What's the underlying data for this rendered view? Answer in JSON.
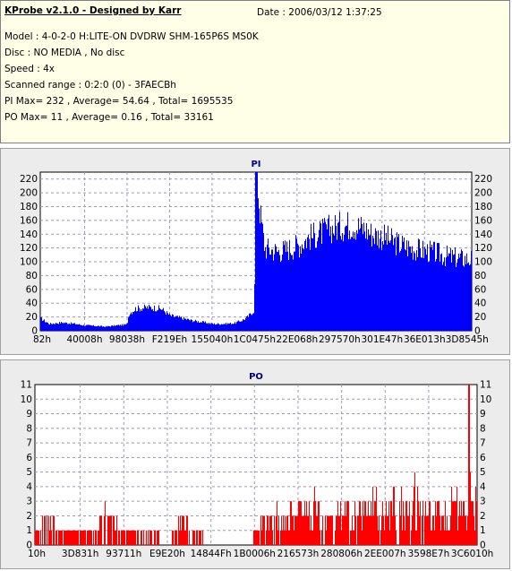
{
  "info": {
    "app_title": "KProbe v2.1.0 - Designed by Karr",
    "date": "Date : 2006/03/12 1:37:25",
    "model": "Model : 4-0-2-0 H:LITE-ON DVDRW SHM-165P6S MS0K",
    "disc": "Disc : NO MEDIA , No disc",
    "speed": "Speed : 4x",
    "scanned_range": "Scanned range : 0:2:0 (0) - 3FAECBh",
    "pi_summary": "PI Max= 232 , Average= 54.64 , Total= 1695535",
    "po_summary": "PO Max= 11 , Average= 0.16 , Total= 33161"
  },
  "colors": {
    "info_bg": "#ffffe7",
    "panel_bg": "#ececec",
    "plot_bg": "#ffffff",
    "pi_fill": "#0000ff",
    "po_fill": "#ff0000",
    "grid": "#9a9ab8",
    "title": "#00007f"
  },
  "chart_data": [
    {
      "type": "area",
      "title": "PI",
      "xlabel": "",
      "ylabel": "",
      "ylim": [
        0,
        230
      ],
      "yticks": [
        0,
        20,
        40,
        60,
        80,
        100,
        120,
        140,
        160,
        180,
        200,
        220
      ],
      "xtick_labels": [
        "82h",
        "40008h",
        "98038h",
        "F219Eh",
        "155040h",
        "1C0475h",
        "22E068h",
        "297570h",
        "301E47h",
        "36E013h",
        "3D8545h"
      ],
      "grid": true,
      "series": [
        {
          "color": "#0000ff",
          "x": [
            0.0,
            0.02,
            0.05,
            0.08,
            0.1,
            0.13,
            0.15,
            0.18,
            0.2,
            0.205,
            0.22,
            0.25,
            0.28,
            0.3,
            0.33,
            0.35,
            0.38,
            0.4,
            0.42,
            0.45,
            0.47,
            0.48,
            0.495,
            0.5,
            0.51,
            0.52,
            0.55,
            0.57,
            0.6,
            0.62,
            0.65,
            0.67,
            0.7,
            0.72,
            0.75,
            0.77,
            0.8,
            0.82,
            0.85,
            0.87,
            0.9,
            0.92,
            0.94,
            0.96,
            0.97,
            1.0
          ],
          "values": [
            18,
            10,
            12,
            10,
            8,
            7,
            6,
            8,
            9,
            25,
            32,
            34,
            32,
            22,
            18,
            15,
            12,
            10,
            10,
            11,
            16,
            20,
            30,
            232,
            165,
            120,
            115,
            118,
            125,
            135,
            142,
            148,
            152,
            155,
            148,
            140,
            135,
            128,
            122,
            118,
            115,
            112,
            108,
            106,
            105,
            104
          ]
        }
      ]
    },
    {
      "type": "bar",
      "title": "PO",
      "xlabel": "",
      "ylabel": "",
      "ylim": [
        0,
        11
      ],
      "yticks": [
        0,
        1,
        2,
        3,
        4,
        5,
        6,
        7,
        8,
        9,
        10,
        11
      ],
      "xtick_labels": [
        "10h",
        "3D831h",
        "93711h",
        "E9E20h",
        "14844Fh",
        "1B0006h",
        "216573h",
        "280806h",
        "2EE007h",
        "3598E7h",
        "3C6010h"
      ],
      "grid": true,
      "series": [
        {
          "color": "#ff0000",
          "x": [
            0.0,
            0.03,
            0.06,
            0.1,
            0.14,
            0.16,
            0.17,
            0.2,
            0.23,
            0.26,
            0.3,
            0.33,
            0.36,
            0.4,
            0.45,
            0.48,
            0.52,
            0.55,
            0.58,
            0.62,
            0.65,
            0.66,
            0.7,
            0.74,
            0.77,
            0.8,
            0.84,
            0.87,
            0.9,
            0.93,
            0.95,
            0.97,
            0.98,
            1.0
          ],
          "values": [
            1,
            2,
            1,
            1,
            1,
            4,
            2,
            1,
            1,
            1,
            0,
            2,
            1,
            0,
            0,
            0,
            2,
            3,
            4,
            3,
            5,
            2,
            3,
            3,
            5,
            4,
            4,
            6,
            3,
            4,
            4,
            5,
            11,
            5
          ]
        }
      ]
    }
  ]
}
